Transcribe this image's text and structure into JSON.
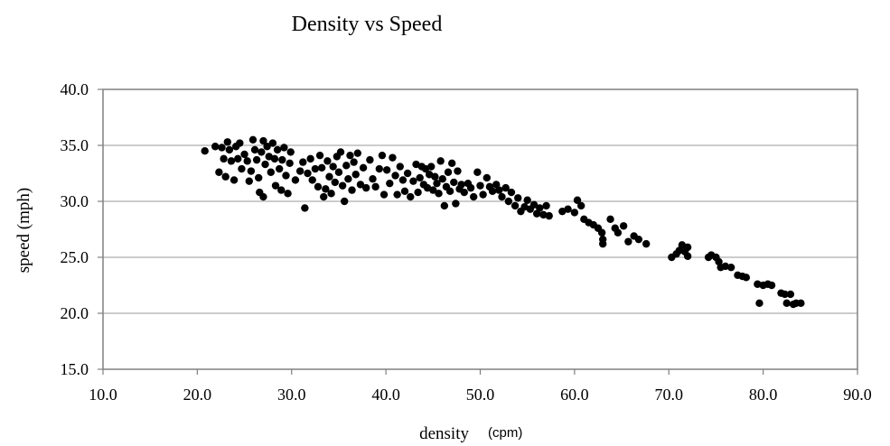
{
  "chart_data": {
    "type": "scatter",
    "title": "Density vs Speed",
    "xlabel": "density",
    "xlabel_unit": "(cpm)",
    "ylabel": "speed (mph)",
    "xlim": [
      10,
      90
    ],
    "ylim": [
      15,
      40
    ],
    "x_ticks": [
      "10.0",
      "20.0",
      "30.0",
      "40.0",
      "50.0",
      "60.0",
      "70.0",
      "80.0",
      "90.0"
    ],
    "y_ticks": [
      "15.0",
      "20.0",
      "25.0",
      "30.0",
      "35.0",
      "40.0"
    ],
    "grid": "horizontal",
    "legend": "none",
    "marker_color": "#000000",
    "points": [
      [
        20.8,
        34.5
      ],
      [
        21.9,
        34.9
      ],
      [
        22.3,
        32.6
      ],
      [
        22.6,
        34.8
      ],
      [
        22.8,
        33.8
      ],
      [
        23.0,
        32.2
      ],
      [
        23.2,
        35.3
      ],
      [
        23.4,
        34.6
      ],
      [
        23.6,
        33.6
      ],
      [
        23.9,
        31.9
      ],
      [
        24.1,
        34.9
      ],
      [
        24.3,
        33.8
      ],
      [
        24.5,
        35.2
      ],
      [
        24.7,
        32.9
      ],
      [
        25.0,
        34.2
      ],
      [
        25.3,
        33.6
      ],
      [
        25.5,
        31.8
      ],
      [
        25.7,
        32.7
      ],
      [
        25.9,
        35.5
      ],
      [
        26.1,
        34.6
      ],
      [
        26.3,
        33.7
      ],
      [
        26.5,
        32.1
      ],
      [
        26.6,
        30.8
      ],
      [
        26.8,
        34.4
      ],
      [
        27.0,
        35.4
      ],
      [
        27.0,
        30.4
      ],
      [
        27.2,
        33.3
      ],
      [
        27.4,
        34.9
      ],
      [
        27.6,
        34.0
      ],
      [
        27.8,
        32.6
      ],
      [
        28.0,
        35.2
      ],
      [
        28.2,
        33.8
      ],
      [
        28.3,
        31.4
      ],
      [
        28.5,
        34.6
      ],
      [
        28.7,
        32.9
      ],
      [
        28.9,
        31.0
      ],
      [
        29.0,
        33.7
      ],
      [
        29.2,
        34.8
      ],
      [
        29.4,
        32.3
      ],
      [
        29.6,
        30.7
      ],
      [
        29.8,
        33.4
      ],
      [
        29.9,
        34.4
      ],
      [
        30.4,
        31.9
      ],
      [
        30.9,
        32.7
      ],
      [
        31.2,
        33.5
      ],
      [
        31.4,
        29.4
      ],
      [
        31.7,
        32.5
      ],
      [
        32.0,
        33.8
      ],
      [
        32.2,
        31.9
      ],
      [
        32.5,
        32.9
      ],
      [
        32.8,
        31.3
      ],
      [
        33.0,
        34.1
      ],
      [
        33.2,
        33.0
      ],
      [
        33.4,
        30.4
      ],
      [
        33.6,
        31.1
      ],
      [
        33.8,
        33.6
      ],
      [
        34.0,
        32.2
      ],
      [
        34.2,
        30.7
      ],
      [
        34.4,
        33.1
      ],
      [
        34.6,
        31.7
      ],
      [
        34.8,
        34.0
      ],
      [
        35.0,
        32.6
      ],
      [
        35.2,
        34.4
      ],
      [
        35.4,
        31.4
      ],
      [
        35.6,
        30.0
      ],
      [
        35.8,
        33.2
      ],
      [
        36.0,
        32.0
      ],
      [
        36.2,
        34.1
      ],
      [
        36.4,
        31.0
      ],
      [
        36.6,
        33.5
      ],
      [
        36.8,
        32.4
      ],
      [
        37.0,
        34.3
      ],
      [
        37.3,
        31.5
      ],
      [
        37.6,
        33.0
      ],
      [
        37.9,
        31.2
      ],
      [
        38.3,
        33.7
      ],
      [
        38.6,
        32.0
      ],
      [
        38.9,
        31.3
      ],
      [
        39.3,
        32.9
      ],
      [
        39.6,
        34.1
      ],
      [
        39.8,
        30.6
      ],
      [
        40.1,
        32.8
      ],
      [
        40.4,
        31.6
      ],
      [
        40.7,
        33.9
      ],
      [
        41.0,
        32.3
      ],
      [
        41.2,
        30.6
      ],
      [
        41.5,
        33.1
      ],
      [
        41.8,
        31.9
      ],
      [
        42.0,
        30.9
      ],
      [
        42.3,
        32.5
      ],
      [
        42.6,
        30.4
      ],
      [
        42.9,
        31.8
      ],
      [
        43.2,
        33.3
      ],
      [
        43.4,
        30.8
      ],
      [
        43.6,
        32.1
      ],
      [
        43.8,
        33.1
      ],
      [
        44.0,
        31.5
      ],
      [
        44.2,
        32.9
      ],
      [
        44.4,
        31.2
      ],
      [
        44.6,
        32.4
      ],
      [
        44.8,
        33.1
      ],
      [
        45.0,
        31.0
      ],
      [
        45.2,
        32.2
      ],
      [
        45.4,
        31.6
      ],
      [
        45.6,
        30.7
      ],
      [
        45.8,
        33.6
      ],
      [
        46.0,
        32.0
      ],
      [
        46.2,
        29.6
      ],
      [
        46.4,
        31.3
      ],
      [
        46.6,
        32.6
      ],
      [
        46.8,
        30.9
      ],
      [
        47.0,
        33.4
      ],
      [
        47.2,
        31.7
      ],
      [
        47.4,
        29.8
      ],
      [
        47.6,
        32.7
      ],
      [
        47.8,
        31.1
      ],
      [
        48.0,
        31.5
      ],
      [
        48.3,
        30.8
      ],
      [
        48.7,
        31.6
      ],
      [
        49.0,
        31.2
      ],
      [
        49.3,
        30.4
      ],
      [
        49.7,
        32.6
      ],
      [
        50.0,
        31.4
      ],
      [
        50.3,
        30.6
      ],
      [
        50.7,
        32.1
      ],
      [
        51.0,
        31.3
      ],
      [
        51.3,
        30.9
      ],
      [
        51.7,
        31.5
      ],
      [
        52.0,
        31.0
      ],
      [
        52.3,
        30.4
      ],
      [
        52.7,
        31.2
      ],
      [
        53.0,
        30.0
      ],
      [
        53.3,
        30.8
      ],
      [
        53.7,
        29.6
      ],
      [
        54.0,
        30.3
      ],
      [
        54.3,
        29.1
      ],
      [
        54.7,
        29.5
      ],
      [
        55.0,
        30.1
      ],
      [
        55.3,
        29.3
      ],
      [
        55.7,
        29.7
      ],
      [
        56.0,
        28.9
      ],
      [
        56.3,
        29.4
      ],
      [
        56.7,
        28.8
      ],
      [
        57.0,
        29.6
      ],
      [
        57.3,
        28.7
      ],
      [
        58.7,
        29.1
      ],
      [
        59.3,
        29.3
      ],
      [
        60.0,
        29.0
      ],
      [
        60.3,
        30.1
      ],
      [
        60.7,
        29.6
      ],
      [
        61.0,
        28.4
      ],
      [
        61.5,
        28.1
      ],
      [
        62.0,
        27.9
      ],
      [
        62.5,
        27.6
      ],
      [
        62.9,
        27.2
      ],
      [
        63.0,
        26.6
      ],
      [
        63.0,
        26.2
      ],
      [
        63.8,
        28.4
      ],
      [
        64.3,
        27.6
      ],
      [
        64.6,
        27.2
      ],
      [
        65.2,
        27.8
      ],
      [
        65.7,
        26.4
      ],
      [
        66.3,
        26.9
      ],
      [
        66.8,
        26.6
      ],
      [
        67.6,
        26.2
      ],
      [
        70.3,
        25.0
      ],
      [
        70.8,
        25.3
      ],
      [
        71.1,
        25.6
      ],
      [
        71.4,
        26.1
      ],
      [
        71.7,
        25.5
      ],
      [
        72.0,
        25.9
      ],
      [
        72.0,
        25.1
      ],
      [
        74.2,
        25.0
      ],
      [
        74.5,
        25.2
      ],
      [
        75.0,
        25.0
      ],
      [
        75.3,
        24.6
      ],
      [
        75.5,
        24.1
      ],
      [
        76.0,
        24.2
      ],
      [
        76.6,
        24.1
      ],
      [
        77.3,
        23.4
      ],
      [
        77.8,
        23.3
      ],
      [
        78.2,
        23.2
      ],
      [
        79.4,
        22.6
      ],
      [
        79.6,
        20.9
      ],
      [
        80.0,
        22.5
      ],
      [
        80.5,
        22.6
      ],
      [
        80.9,
        22.5
      ],
      [
        81.9,
        21.8
      ],
      [
        82.3,
        21.7
      ],
      [
        82.5,
        20.9
      ],
      [
        82.9,
        21.7
      ],
      [
        83.2,
        20.8
      ],
      [
        83.5,
        20.9
      ],
      [
        84.0,
        20.9
      ]
    ]
  }
}
